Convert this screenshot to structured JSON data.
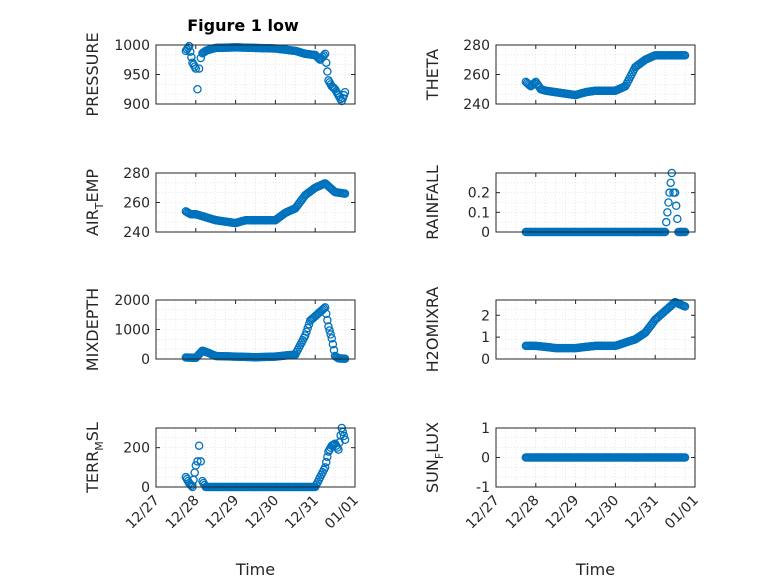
{
  "title": "Figure 1 low",
  "colors": {
    "marker": "#0072BD",
    "axis": "#262626",
    "grid": "#d9d9d9"
  },
  "chart_data": [
    {
      "type": "scatter",
      "ylabel": "PRESSURE",
      "ylim": [
        900,
        1000
      ],
      "yticks": [
        "1000",
        "950",
        "900"
      ],
      "x": [
        "12/27 18:00",
        "12/27 20:00",
        "12/27 22:00",
        "12/28 00:00",
        "12/28 01:00",
        "12/28 02:00",
        "12/28 03:00",
        "12/28 04:00",
        "12/28 06:00",
        "12/28 08:00",
        "12/28 12:00",
        "12/29 00:00",
        "12/29 12:00",
        "12/30 00:00",
        "12/30 12:00",
        "12/30 18:00",
        "12/31 00:00",
        "12/31 03:00",
        "12/31 06:00",
        "12/31 08:00",
        "12/31 10:00",
        "12/31 12:00",
        "12/31 14:00",
        "12/31 16:00",
        "12/31 18:00"
      ],
      "y": [
        990,
        998,
        970,
        960,
        925,
        960,
        978,
        986,
        990,
        992,
        995,
        996,
        995,
        994,
        990,
        985,
        983,
        975,
        985,
        940,
        930,
        925,
        915,
        905,
        920
      ]
    },
    {
      "type": "scatter",
      "ylabel": "THETA",
      "ylim": [
        240,
        280
      ],
      "yticks": [
        "280",
        "260",
        "240"
      ],
      "x": [
        "12/27 18:00",
        "12/27 21:00",
        "12/28 00:00",
        "12/28 03:00",
        "12/28 06:00",
        "12/28 12:00",
        "12/29 00:00",
        "12/29 06:00",
        "12/29 12:00",
        "12/30 00:00",
        "12/30 06:00",
        "12/30 12:00",
        "12/30 18:00",
        "12/31 00:00",
        "12/31 06:00",
        "12/31 12:00",
        "12/31 18:00"
      ],
      "y": [
        255,
        252,
        255,
        250,
        249,
        248,
        246,
        248,
        249,
        249,
        252,
        265,
        270,
        273,
        273,
        273,
        273
      ]
    },
    {
      "type": "scatter",
      "ylabel": "AIR_TEMP",
      "ylim": [
        240,
        280
      ],
      "yticks": [
        "280",
        "260",
        "240"
      ],
      "x": [
        "12/27 18:00",
        "12/27 21:00",
        "12/28 00:00",
        "12/28 06:00",
        "12/28 12:00",
        "12/29 00:00",
        "12/29 06:00",
        "12/29 12:00",
        "12/30 00:00",
        "12/30 06:00",
        "12/30 12:00",
        "12/30 18:00",
        "12/31 00:00",
        "12/31 06:00",
        "12/31 12:00",
        "12/31 18:00"
      ],
      "y": [
        254,
        252,
        252,
        250,
        248,
        246,
        248,
        248,
        248,
        253,
        256,
        265,
        270,
        273,
        267,
        266
      ]
    },
    {
      "type": "scatter",
      "ylabel": "RAINFALL",
      "ylim": [
        0,
        0.3
      ],
      "yticks": [
        "0.2",
        "0.1",
        "0"
      ],
      "x": [
        "12/27 18:00",
        "12/28 00:00",
        "12/28 12:00",
        "12/29 00:00",
        "12/29 12:00",
        "12/30 00:00",
        "12/30 12:00",
        "12/31 00:00",
        "12/31 06:00",
        "12/31 10:00",
        "12/31 11:00",
        "12/31 12:00",
        "12/31 14:00",
        "12/31 18:00"
      ],
      "y": [
        0,
        0,
        0,
        0,
        0,
        0,
        0,
        0,
        0,
        0.3,
        0.2,
        0.2,
        0,
        0
      ]
    },
    {
      "type": "scatter",
      "ylabel": "MIXDEPTH",
      "ylim": [
        0,
        2000
      ],
      "yticks": [
        "2000",
        "1000",
        "0"
      ],
      "x": [
        "12/27 18:00",
        "12/28 00:00",
        "12/28 04:00",
        "12/28 08:00",
        "12/28 12:00",
        "12/29 00:00",
        "12/29 12:00",
        "12/30 00:00",
        "12/30 12:00",
        "12/30 18:00",
        "12/30 21:00",
        "12/31 00:00",
        "12/31 03:00",
        "12/31 06:00",
        "12/31 08:00",
        "12/31 10:00",
        "12/31 12:00",
        "12/31 14:00",
        "12/31 18:00"
      ],
      "y": [
        50,
        40,
        280,
        200,
        100,
        80,
        60,
        80,
        150,
        800,
        1300,
        1450,
        1600,
        1750,
        1100,
        700,
        100,
        20,
        10
      ]
    },
    {
      "type": "scatter",
      "ylabel": "H2OMIXRA",
      "ylim": [
        0,
        2.7
      ],
      "yticks": [
        "2",
        "1",
        "0"
      ],
      "x": [
        "12/27 18:00",
        "12/28 00:00",
        "12/28 12:00",
        "12/29 00:00",
        "12/29 12:00",
        "12/30 00:00",
        "12/30 12:00",
        "12/30 18:00",
        "12/31 00:00",
        "12/31 06:00",
        "12/31 12:00",
        "12/31 18:00"
      ],
      "y": [
        0.6,
        0.6,
        0.5,
        0.5,
        0.6,
        0.6,
        0.9,
        1.2,
        1.8,
        2.2,
        2.6,
        2.4
      ]
    },
    {
      "type": "scatter",
      "ylabel": "TERR_MSL",
      "ylim": [
        0,
        300
      ],
      "yticks": [
        "200",
        "0"
      ],
      "x": [
        "12/27 18:00",
        "12/27 20:00",
        "12/27 22:00",
        "12/28 00:00",
        "12/28 01:00",
        "12/28 02:00",
        "12/28 03:00",
        "12/28 04:00",
        "12/28 06:00",
        "12/28 12:00",
        "12/29 00:00",
        "12/29 12:00",
        "12/30 00:00",
        "12/30 12:00",
        "12/31 00:00",
        "12/31 06:00",
        "12/31 08:00",
        "12/31 10:00",
        "12/31 12:00",
        "12/31 14:00",
        "12/31 16:00",
        "12/31 18:00"
      ],
      "y": [
        50,
        20,
        0,
        110,
        130,
        210,
        130,
        30,
        0,
        0,
        0,
        0,
        0,
        0,
        0,
        100,
        180,
        210,
        220,
        190,
        300,
        240
      ]
    },
    {
      "type": "scatter",
      "ylabel": "SUN_FLUX",
      "ylim": [
        -1,
        1
      ],
      "yticks": [
        "1",
        "0",
        "-1"
      ],
      "x": [
        "12/27 18:00",
        "12/28 00:00",
        "12/28 12:00",
        "12/29 00:00",
        "12/29 12:00",
        "12/30 00:00",
        "12/30 12:00",
        "12/31 00:00",
        "12/31 12:00",
        "12/31 18:00"
      ],
      "y": [
        0,
        0,
        0,
        0,
        0,
        0,
        0,
        0,
        0,
        0
      ]
    }
  ],
  "xaxis": {
    "xlabel": "Time",
    "xlim": [
      "12/27 00:00",
      "01/01 00:00"
    ],
    "ticks": [
      "12/27",
      "12/28",
      "12/29",
      "12/30",
      "12/31",
      "01/01"
    ]
  }
}
